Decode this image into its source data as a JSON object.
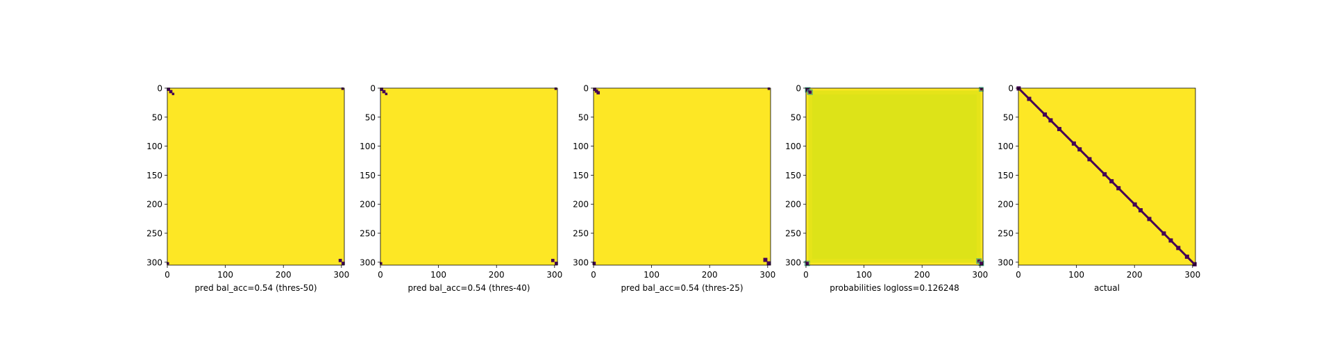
{
  "colors": {
    "background": "#ffffff",
    "viridis_yellow": "#fde725",
    "viridis_dark": "#440154",
    "prob_inner": "#dde318",
    "prob_mid": "#d0e11c",
    "prob_border": "#e5e419",
    "corner_teal": "#3ba88b",
    "axis": "#000000"
  },
  "chart_data": [
    {
      "type": "heatmap",
      "title": "",
      "xlabel": "pred bal_acc=0.54 (thres-50)",
      "ylabel": "",
      "colormap": "viridis",
      "matrix_size": 305,
      "xlim": [
        0,
        305
      ],
      "ylim": [
        305,
        0
      ],
      "x_ticks": [
        0,
        100,
        200,
        300
      ],
      "y_ticks": [
        0,
        50,
        100,
        150,
        200,
        250,
        300
      ],
      "background_value": "high",
      "marks": [
        {
          "x": 2,
          "y": 2,
          "size": 4
        },
        {
          "x": 6,
          "y": 6,
          "size": 4
        },
        {
          "x": 10,
          "y": 10,
          "size": 3
        },
        {
          "x": 302,
          "y": 1,
          "size": 3
        },
        {
          "x": 1,
          "y": 302,
          "size": 3
        },
        {
          "x": 298,
          "y": 297,
          "size": 4
        },
        {
          "x": 303,
          "y": 302,
          "size": 4
        }
      ]
    },
    {
      "type": "heatmap",
      "title": "",
      "xlabel": "pred bal_acc=0.54 (thres-40)",
      "ylabel": "",
      "colormap": "viridis",
      "matrix_size": 305,
      "xlim": [
        0,
        305
      ],
      "ylim": [
        305,
        0
      ],
      "x_ticks": [
        0,
        100,
        200,
        300
      ],
      "y_ticks": [
        0,
        50,
        100,
        150,
        200,
        250,
        300
      ],
      "background_value": "high",
      "marks": [
        {
          "x": 2,
          "y": 2,
          "size": 4
        },
        {
          "x": 6,
          "y": 6,
          "size": 4
        },
        {
          "x": 10,
          "y": 10,
          "size": 3
        },
        {
          "x": 302,
          "y": 1,
          "size": 3
        },
        {
          "x": 1,
          "y": 302,
          "size": 3
        },
        {
          "x": 297,
          "y": 297,
          "size": 4
        },
        {
          "x": 303,
          "y": 302,
          "size": 4
        }
      ]
    },
    {
      "type": "heatmap",
      "title": "",
      "xlabel": "pred bal_acc=0.54 (thres-25)",
      "ylabel": "",
      "colormap": "viridis",
      "matrix_size": 305,
      "xlim": [
        0,
        305
      ],
      "ylim": [
        305,
        0
      ],
      "x_ticks": [
        0,
        100,
        200,
        300
      ],
      "y_ticks": [
        0,
        50,
        100,
        150,
        200,
        250,
        300
      ],
      "background_value": "high",
      "marks": [
        {
          "x": 2,
          "y": 2,
          "size": 4
        },
        {
          "x": 5,
          "y": 5,
          "size": 4
        },
        {
          "x": 8,
          "y": 8,
          "size": 4
        },
        {
          "x": 302,
          "y": 1,
          "size": 3
        },
        {
          "x": 1,
          "y": 302,
          "size": 4
        },
        {
          "x": 296,
          "y": 296,
          "size": 5
        },
        {
          "x": 302,
          "y": 302,
          "size": 5
        }
      ]
    },
    {
      "type": "heatmap",
      "title": "",
      "xlabel": "probabilities logloss=0.126248",
      "ylabel": "",
      "colormap": "viridis",
      "matrix_size": 305,
      "xlim": [
        0,
        305
      ],
      "ylim": [
        305,
        0
      ],
      "x_ticks": [
        0,
        100,
        200,
        300
      ],
      "y_ticks": [
        0,
        50,
        100,
        150,
        200,
        250,
        300
      ],
      "regions": [
        {
          "from": 0,
          "to": 305,
          "level": 0.99
        },
        {
          "from": 4,
          "to": 301,
          "level": 0.93
        },
        {
          "from": 11,
          "to": 294,
          "level": 0.89
        }
      ],
      "marks": [
        {
          "x": 3,
          "y": 3,
          "size": 4
        },
        {
          "x": 7,
          "y": 7,
          "size": 4
        },
        {
          "x": 302,
          "y": 2,
          "size": 3
        },
        {
          "x": 2,
          "y": 302,
          "size": 4
        },
        {
          "x": 298,
          "y": 298,
          "size": 4
        },
        {
          "x": 302,
          "y": 302,
          "size": 4
        }
      ]
    },
    {
      "type": "heatmap",
      "title": "",
      "xlabel": "actual",
      "ylabel": "",
      "colormap": "viridis",
      "matrix_size": 305,
      "xlim": [
        0,
        305
      ],
      "ylim": [
        305,
        0
      ],
      "x_ticks": [
        0,
        100,
        200,
        300
      ],
      "y_ticks": [
        0,
        50,
        100,
        150,
        200,
        250,
        300
      ],
      "background_value": "high",
      "diagonal": true,
      "diagonal_marks": [
        0,
        18,
        45,
        55,
        70,
        95,
        105,
        122,
        148,
        160,
        172,
        200,
        210,
        225,
        250,
        262,
        275,
        290,
        303
      ]
    }
  ]
}
